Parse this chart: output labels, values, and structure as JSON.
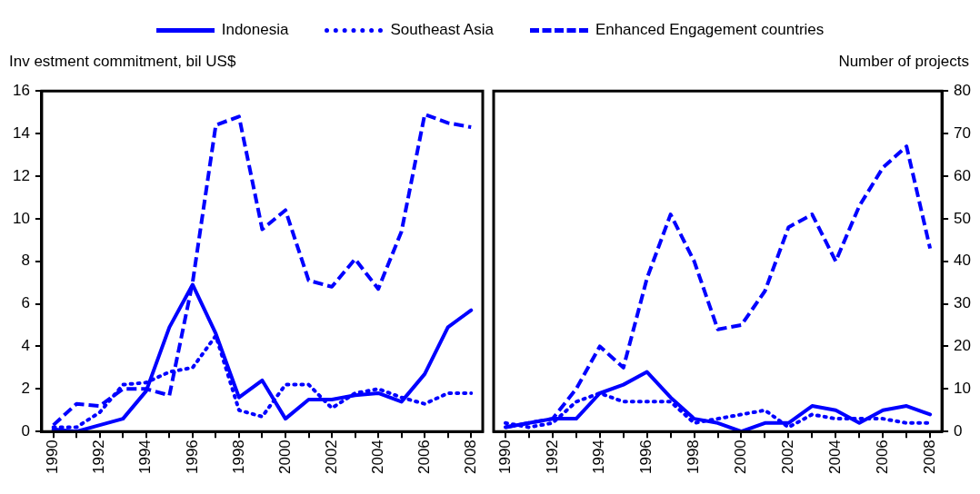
{
  "chart_data": [
    {
      "type": "line",
      "ylabel": "Inv estment commitment, bil US$",
      "categories": [
        "1990",
        null,
        "1992",
        null,
        "1994",
        null,
        "1996",
        null,
        "1998",
        null,
        "2000",
        null,
        "2002",
        null,
        "2004",
        null,
        "2006",
        null,
        "2008"
      ],
      "ylim": [
        0,
        16
      ],
      "yticks": [
        0,
        2,
        4,
        6,
        8,
        10,
        12,
        14,
        16
      ],
      "grid": false,
      "legend": "top",
      "marker": "none",
      "series": [
        {
          "name": "Indonesia",
          "color": "#0000ff",
          "line_style": "solid",
          "values": [
            0.1,
            0.0,
            0.3,
            0.6,
            1.9,
            4.9,
            6.9,
            4.6,
            1.6,
            2.4,
            0.6,
            1.5,
            1.5,
            1.7,
            1.8,
            1.4,
            2.7,
            4.9,
            5.7
          ]
        },
        {
          "name": "Southeast Asia",
          "color": "#0000ff",
          "line_style": "dotted",
          "values": [
            0.2,
            0.2,
            0.9,
            2.2,
            2.3,
            2.8,
            3.0,
            4.5,
            1.0,
            0.7,
            2.2,
            2.2,
            1.1,
            1.8,
            2.0,
            1.6,
            1.3,
            1.8,
            1.8
          ]
        },
        {
          "name": "Enhanced Engagement countries",
          "color": "#0000ff",
          "line_style": "dashed",
          "values": [
            0.3,
            1.3,
            1.2,
            2.0,
            2.0,
            1.7,
            7.0,
            14.4,
            14.8,
            9.5,
            10.4,
            7.1,
            6.8,
            8.1,
            6.7,
            9.4,
            14.9,
            14.5,
            14.3
          ]
        }
      ]
    },
    {
      "type": "line",
      "y2label": "Number of projects",
      "categories": [
        "1990",
        null,
        "1992",
        null,
        "1994",
        null,
        "1996",
        null,
        "1998",
        null,
        "2000",
        null,
        "2002",
        null,
        "2004",
        null,
        "2006",
        null,
        "2008"
      ],
      "y2lim": [
        0,
        80
      ],
      "y2ticks": [
        0,
        10,
        20,
        30,
        40,
        50,
        60,
        70,
        80
      ],
      "grid": false,
      "marker": "none",
      "series": [
        {
          "color": "#0000ff",
          "line_style": "solid",
          "axis": "y2",
          "values": [
            1,
            2,
            3,
            3,
            9,
            11,
            14,
            8,
            3,
            2,
            0,
            2,
            2,
            6,
            5,
            2,
            5,
            6,
            4
          ]
        },
        {
          "color": "#0000ff",
          "line_style": "dotted",
          "axis": "y2",
          "values": [
            2,
            1,
            2,
            7,
            9,
            7,
            7,
            7,
            2,
            3,
            4,
            5,
            1,
            4,
            3,
            3,
            3,
            2,
            2
          ]
        },
        {
          "color": "#0000ff",
          "line_style": "dashed",
          "axis": "y2",
          "values": [
            1,
            2,
            3,
            10,
            20,
            15,
            36,
            51,
            40,
            24,
            25,
            33,
            48,
            51,
            40,
            53,
            62,
            67,
            43
          ]
        }
      ]
    }
  ]
}
